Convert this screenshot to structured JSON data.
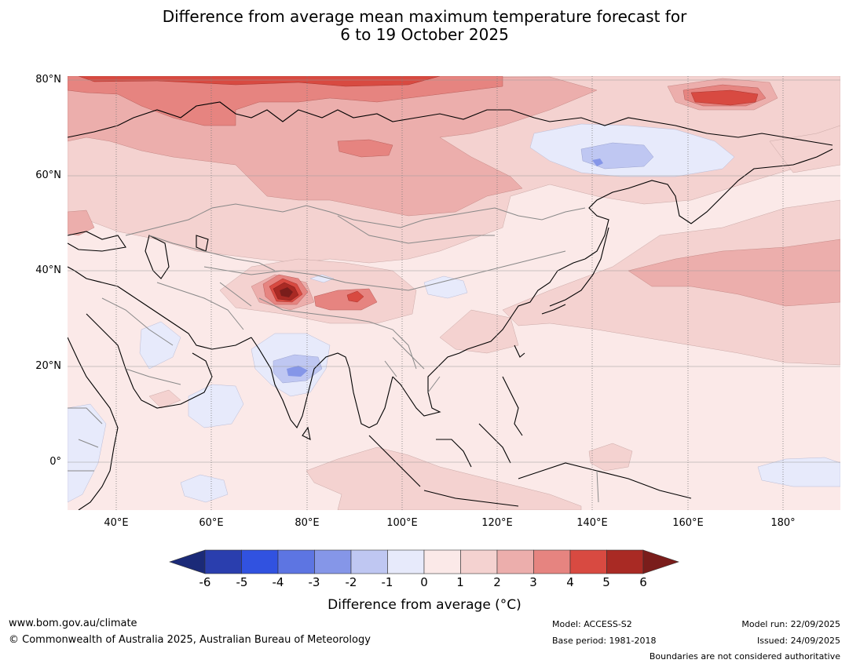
{
  "title": {
    "line1": "Difference from average mean maximum temperature forecast for",
    "line2": "6 to 19 October 2025"
  },
  "map": {
    "lat_labels": [
      "80°N",
      "60°N",
      "40°N",
      "20°N",
      "0°"
    ],
    "lon_labels": [
      "40°E",
      "60°E",
      "80°E",
      "100°E",
      "120°E",
      "140°E",
      "160°E",
      "180°"
    ]
  },
  "colorbar": {
    "ticks": [
      "-6",
      "-5",
      "-4",
      "-3",
      "-2",
      "-1",
      "0",
      "1",
      "2",
      "3",
      "4",
      "5",
      "6"
    ],
    "title": "Difference from average (°C)",
    "colors": {
      "below_min": "#1b2a78",
      "bins": [
        "#2a3eae",
        "#3152e0",
        "#5d75e2",
        "#8596e8",
        "#bfc7f2",
        "#e7eafb",
        "#fbe9e8",
        "#f4d2d0",
        "#ecaeac",
        "#e68480",
        "#d84a41",
        "#a92a24"
      ],
      "above_max": "#7a1d1b"
    }
  },
  "footer": {
    "website": "www.bom.gov.au/climate",
    "copyright": "© Commonwealth of Australia 2025, Australian Bureau of Meteorology",
    "model": "Model: ACCESS-S2",
    "base_period": "Base period: 1981-2018",
    "model_run": "Model run: 22/09/2025",
    "issued": "Issued: 24/09/2025",
    "disclaimer": "Boundaries are not considered authoritative"
  }
}
